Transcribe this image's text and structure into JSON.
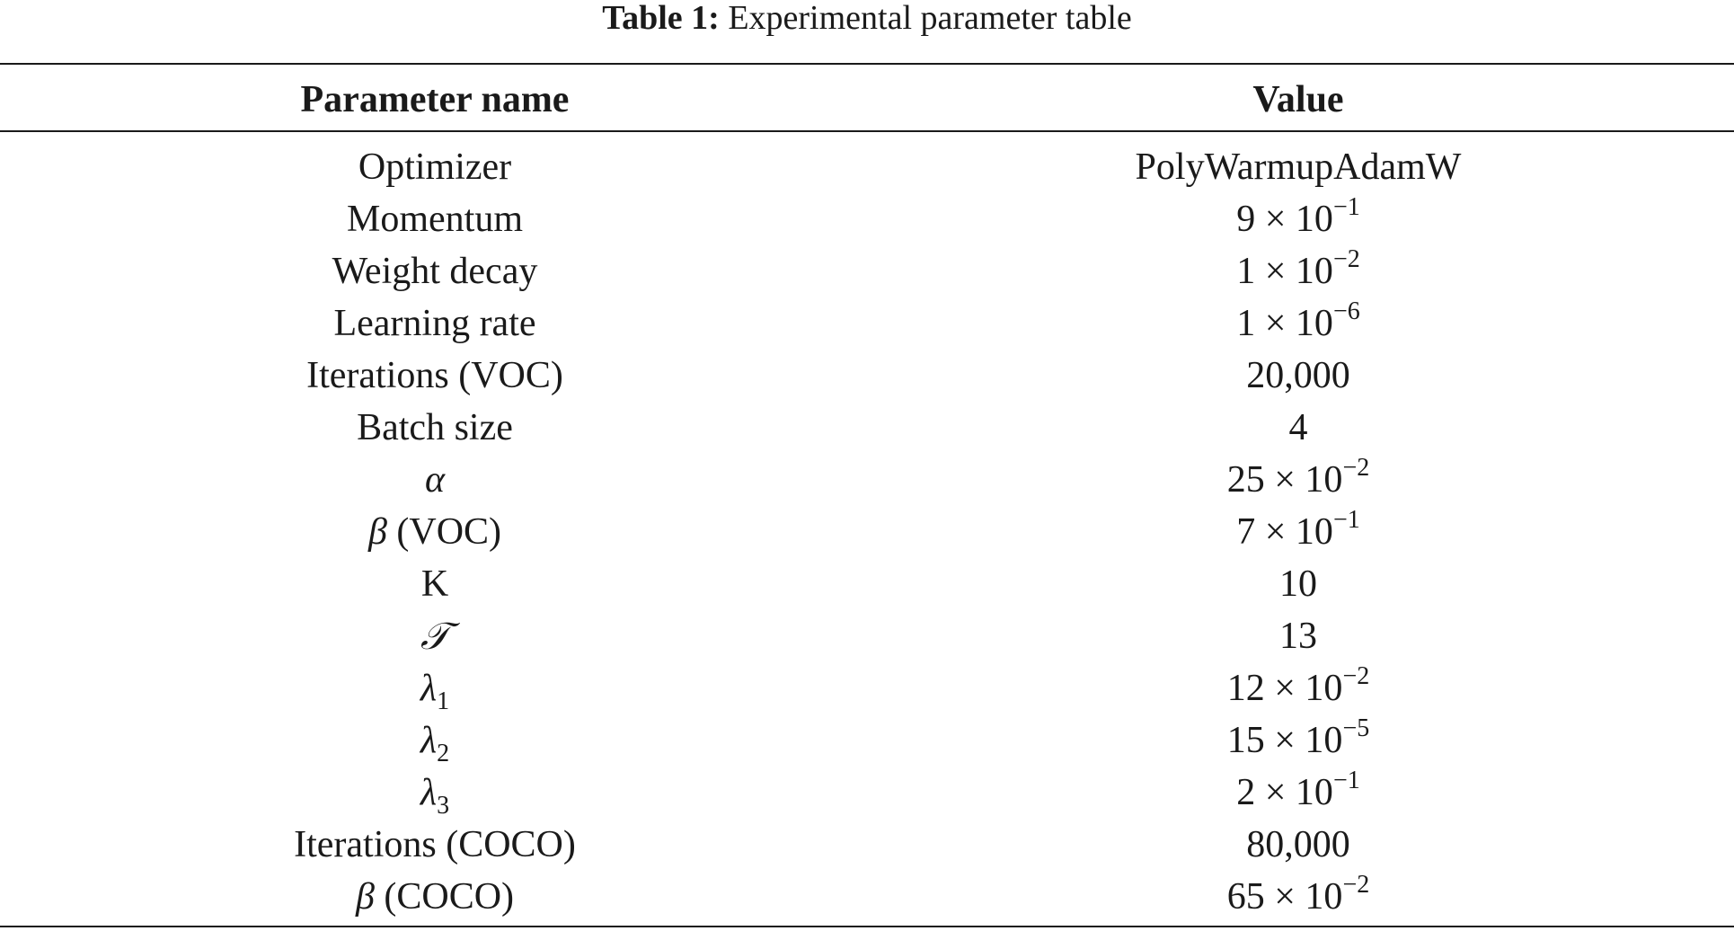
{
  "caption": {
    "label": "Table 1:",
    "text": " Experimental parameter table"
  },
  "table": {
    "headers": [
      "Parameter name",
      "Value"
    ],
    "rows": [
      {
        "name": "Optimizer",
        "mantissa": "PolyWarmupAdamW",
        "exponent": ""
      },
      {
        "name": "Momentum",
        "mantissa": "9 × 10",
        "exponent": "−1"
      },
      {
        "name": "Weight decay",
        "mantissa": "1 × 10",
        "exponent": "−2"
      },
      {
        "name": "Learning rate",
        "mantissa": "1 × 10",
        "exponent": "−6"
      },
      {
        "name": "Iterations (VOC)",
        "mantissa": "20,000",
        "exponent": ""
      },
      {
        "name": "Batch size",
        "mantissa": "4",
        "exponent": ""
      },
      {
        "symbol": "α",
        "name": "",
        "mantissa": "25 × 10",
        "exponent": "−2"
      },
      {
        "symbol": "β",
        "name": " (VOC)",
        "mantissa": "7 × 10",
        "exponent": "−1"
      },
      {
        "name": "K",
        "mantissa": "10",
        "exponent": ""
      },
      {
        "symbol": "𝒯",
        "name": "",
        "mantissa": "13",
        "exponent": ""
      },
      {
        "symbol": "λ",
        "subscript": "1",
        "mantissa": "12 × 10",
        "exponent": "−2"
      },
      {
        "symbol": "λ",
        "subscript": "2",
        "mantissa": "15 × 10",
        "exponent": "−5"
      },
      {
        "symbol": "λ",
        "subscript": "3",
        "mantissa": "2 × 10",
        "exponent": "−1"
      },
      {
        "name": "Iterations (COCO)",
        "mantissa": "80,000",
        "exponent": ""
      },
      {
        "symbol": "β",
        "name": " (COCO)",
        "mantissa": "65 × 10",
        "exponent": "−2"
      }
    ]
  }
}
